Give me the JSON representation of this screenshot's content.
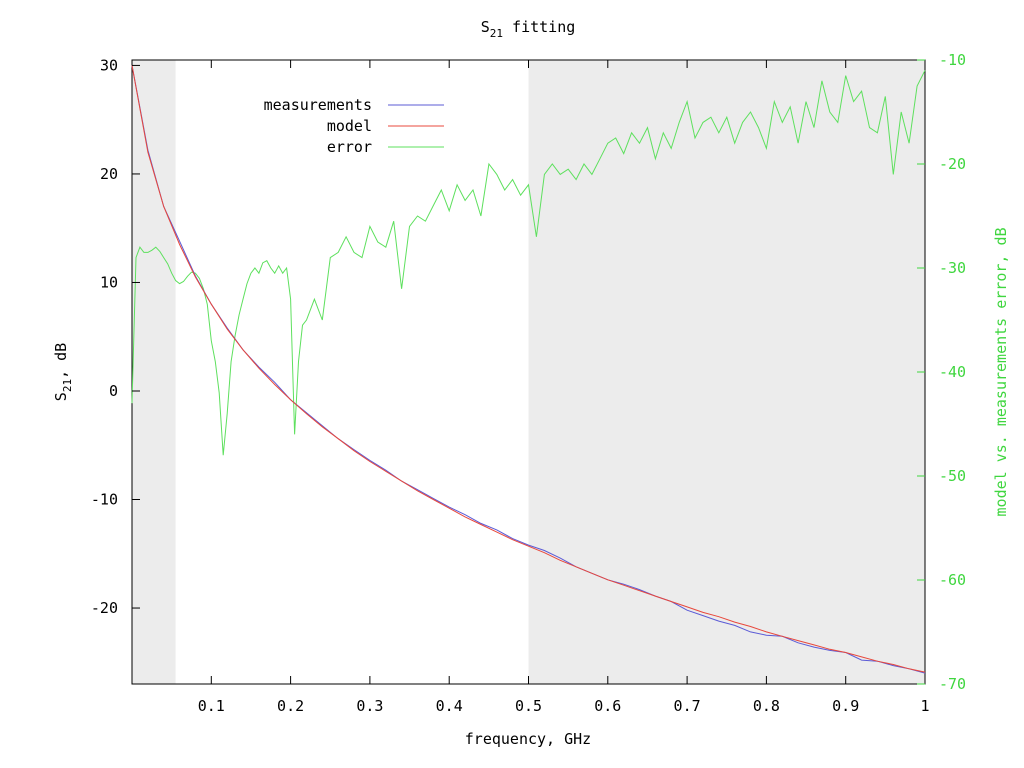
{
  "chart_data": {
    "type": "line",
    "title_main": "S",
    "title_sub": "21",
    "title_rest": " fitting",
    "xlabel": "frequency, GHz",
    "ylabel_main": "S",
    "ylabel_sub": "21",
    "ylabel_rest": ", dB",
    "y2label": "model vs. measurements error, dB",
    "xlim": [
      0.0,
      1.0
    ],
    "ylim": [
      -27,
      30.5
    ],
    "y2lim": [
      -70,
      -10
    ],
    "x_ticks": [
      "0.1",
      "0.2",
      "0.3",
      "0.4",
      "0.5",
      "0.6",
      "0.7",
      "0.8",
      "0.9",
      "1"
    ],
    "y_ticks": [
      "30",
      "20",
      "10",
      "0",
      "-10",
      "-20"
    ],
    "y2_ticks": [
      "-10",
      "-20",
      "-30",
      "-40",
      "-50",
      "-60",
      "-70"
    ],
    "shaded_regions": [
      [
        0.0,
        0.055
      ],
      [
        0.5,
        1.0
      ]
    ],
    "legend_position": "top-left",
    "colors": {
      "measurements": "#5b5bd6",
      "model": "#e8483c",
      "error": "#5ee05e",
      "shade": "#ececec",
      "y2_axis": "#3fd63f"
    },
    "series": [
      {
        "name": "measurements",
        "x": [
          0.0,
          0.02,
          0.04,
          0.06,
          0.08,
          0.1,
          0.12,
          0.14,
          0.16,
          0.18,
          0.2,
          0.22,
          0.24,
          0.26,
          0.28,
          0.3,
          0.32,
          0.34,
          0.36,
          0.38,
          0.4,
          0.42,
          0.44,
          0.46,
          0.48,
          0.5,
          0.52,
          0.54,
          0.56,
          0.58,
          0.6,
          0.62,
          0.64,
          0.66,
          0.68,
          0.7,
          0.72,
          0.74,
          0.76,
          0.78,
          0.8,
          0.82,
          0.84,
          0.86,
          0.88,
          0.9,
          0.92,
          0.94,
          0.96,
          0.98,
          1.0
        ],
        "values": [
          30.0,
          22.2,
          17.0,
          13.8,
          10.6,
          8.0,
          5.8,
          3.8,
          2.2,
          0.8,
          -0.8,
          -2.0,
          -3.2,
          -4.4,
          -5.4,
          -6.4,
          -7.3,
          -8.3,
          -9.1,
          -9.9,
          -10.7,
          -11.4,
          -12.2,
          -12.8,
          -13.6,
          -14.2,
          -14.7,
          -15.4,
          -16.2,
          -16.8,
          -17.4,
          -17.8,
          -18.3,
          -18.9,
          -19.4,
          -20.2,
          -20.7,
          -21.2,
          -21.6,
          -22.2,
          -22.5,
          -22.6,
          -23.2,
          -23.6,
          -23.9,
          -24.1,
          -24.8,
          -24.9,
          -25.3,
          -25.6,
          -26.0
        ]
      },
      {
        "name": "model",
        "x": [
          0.0,
          0.02,
          0.04,
          0.06,
          0.08,
          0.1,
          0.12,
          0.14,
          0.16,
          0.18,
          0.2,
          0.22,
          0.24,
          0.26,
          0.28,
          0.3,
          0.32,
          0.34,
          0.36,
          0.38,
          0.4,
          0.42,
          0.44,
          0.46,
          0.48,
          0.5,
          0.52,
          0.54,
          0.56,
          0.58,
          0.6,
          0.62,
          0.64,
          0.66,
          0.68,
          0.7,
          0.72,
          0.74,
          0.76,
          0.78,
          0.8,
          0.82,
          0.84,
          0.86,
          0.88,
          0.9,
          0.92,
          0.94,
          0.96,
          0.98,
          1.0
        ],
        "values": [
          30.0,
          22.0,
          17.0,
          13.5,
          10.5,
          8.0,
          5.7,
          3.8,
          2.1,
          0.6,
          -0.8,
          -2.1,
          -3.3,
          -4.4,
          -5.5,
          -6.5,
          -7.4,
          -8.3,
          -9.2,
          -10.0,
          -10.8,
          -11.6,
          -12.3,
          -13.0,
          -13.7,
          -14.3,
          -14.9,
          -15.6,
          -16.2,
          -16.8,
          -17.4,
          -17.9,
          -18.4,
          -18.9,
          -19.4,
          -19.9,
          -20.4,
          -20.8,
          -21.3,
          -21.7,
          -22.2,
          -22.6,
          -23.0,
          -23.4,
          -23.8,
          -24.1,
          -24.5,
          -24.9,
          -25.2,
          -25.6,
          -25.9
        ]
      },
      {
        "name": "error",
        "axis": "right",
        "x": [
          0.0,
          0.005,
          0.01,
          0.015,
          0.02,
          0.025,
          0.03,
          0.035,
          0.04,
          0.045,
          0.05,
          0.055,
          0.06,
          0.065,
          0.07,
          0.075,
          0.08,
          0.085,
          0.09,
          0.095,
          0.1,
          0.105,
          0.11,
          0.115,
          0.12,
          0.125,
          0.13,
          0.135,
          0.14,
          0.145,
          0.15,
          0.155,
          0.16,
          0.165,
          0.17,
          0.175,
          0.18,
          0.185,
          0.19,
          0.195,
          0.2,
          0.205,
          0.21,
          0.215,
          0.22,
          0.23,
          0.24,
          0.25,
          0.26,
          0.27,
          0.28,
          0.29,
          0.3,
          0.31,
          0.32,
          0.33,
          0.34,
          0.35,
          0.36,
          0.37,
          0.38,
          0.39,
          0.4,
          0.41,
          0.42,
          0.43,
          0.44,
          0.45,
          0.46,
          0.47,
          0.48,
          0.49,
          0.5,
          0.51,
          0.52,
          0.53,
          0.54,
          0.55,
          0.56,
          0.57,
          0.58,
          0.59,
          0.6,
          0.61,
          0.62,
          0.63,
          0.64,
          0.65,
          0.66,
          0.67,
          0.68,
          0.69,
          0.7,
          0.71,
          0.72,
          0.73,
          0.74,
          0.75,
          0.76,
          0.77,
          0.78,
          0.79,
          0.8,
          0.81,
          0.82,
          0.83,
          0.84,
          0.85,
          0.86,
          0.87,
          0.88,
          0.89,
          0.9,
          0.91,
          0.92,
          0.93,
          0.94,
          0.95,
          0.96,
          0.97,
          0.98,
          0.99,
          1.0
        ],
        "values": [
          -43,
          -29,
          -28,
          -28.5,
          -28.5,
          -28.3,
          -28.0,
          -28.4,
          -29.0,
          -29.6,
          -30.5,
          -31.2,
          -31.5,
          -31.3,
          -30.8,
          -30.4,
          -30.5,
          -31.0,
          -32.0,
          -33.5,
          -37.0,
          -39.0,
          -42.0,
          -48.0,
          -44.0,
          -39.0,
          -36.5,
          -34.5,
          -33.0,
          -31.5,
          -30.5,
          -30.0,
          -30.5,
          -29.5,
          -29.3,
          -30.0,
          -30.5,
          -29.8,
          -30.5,
          -30.0,
          -33.0,
          -46.0,
          -39.0,
          -35.5,
          -35.0,
          -33.0,
          -35.0,
          -29.0,
          -28.5,
          -27.0,
          -28.5,
          -29.0,
          -26.0,
          -27.5,
          -28.0,
          -25.5,
          -32.0,
          -26.0,
          -25.0,
          -25.5,
          -24.0,
          -22.5,
          -24.5,
          -22.0,
          -23.5,
          -22.5,
          -25.0,
          -20.0,
          -21.0,
          -22.5,
          -21.5,
          -23.0,
          -22.0,
          -27.0,
          -21.0,
          -20.0,
          -21.0,
          -20.5,
          -21.5,
          -20.0,
          -21.0,
          -19.5,
          -18.0,
          -17.5,
          -19.0,
          -17.0,
          -18.0,
          -16.5,
          -19.5,
          -17.0,
          -18.5,
          -16.0,
          -14.0,
          -17.5,
          -16.0,
          -15.5,
          -17.0,
          -15.5,
          -18.0,
          -16.0,
          -15.0,
          -16.5,
          -18.5,
          -14.0,
          -16.0,
          -14.5,
          -18.0,
          -14.0,
          -16.5,
          -12.0,
          -15.0,
          -16.0,
          -11.5,
          -14.0,
          -13.0,
          -16.5,
          -17.0,
          -13.5,
          -21.0,
          -15.0,
          -18.0,
          -12.5,
          -11.0
        ]
      }
    ]
  }
}
